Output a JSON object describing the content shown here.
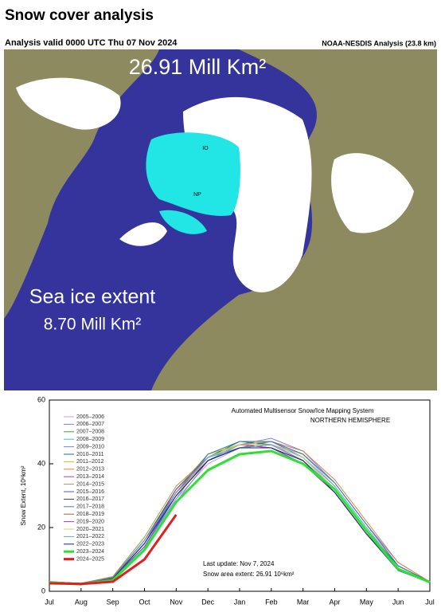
{
  "header": {
    "title": "Snow cover analysis",
    "valid": "Analysis valid 0000 UTC  Thu 07 Nov 2024",
    "source": "NOAA-NESDIS Analysis (23.8 km)"
  },
  "map": {
    "snow_area": "26.91 Mill Km²",
    "ice_label": "Sea ice extent",
    "ice_area": "8.70 Mill Km²",
    "marks": [
      "IO",
      "NP"
    ]
  },
  "chart_data": {
    "type": "line",
    "title": "Automated  Multisensor Snow/Ice Mapping System",
    "subtitle": "NORTHERN HEMISPHERE",
    "ylabel": "Snow Extent, 10⁶km²",
    "annotations": [
      "Last update: Nov  7, 2024",
      "Snow area extent: 26.91 10⁶km²"
    ],
    "categories": [
      "Jul",
      "Aug",
      "Sep",
      "Oct",
      "Nov",
      "Dec",
      "Jan",
      "Feb",
      "Mar",
      "Apr",
      "May",
      "Jun",
      "Jul"
    ],
    "ylim": [
      0,
      60
    ],
    "yticks": [
      0,
      20,
      40,
      60
    ],
    "series": [
      {
        "name": "2005–2006",
        "color": "#c8a0d8",
        "values": [
          3,
          2.5,
          4,
          14,
          29,
          40,
          45,
          46,
          43,
          33,
          20,
          8,
          3
        ]
      },
      {
        "name": "2006–2007",
        "color": "#7f7fd0",
        "values": [
          3,
          2.4,
          3.8,
          13,
          28,
          41,
          46,
          47,
          42,
          32,
          19,
          7,
          3
        ]
      },
      {
        "name": "2007–2008",
        "color": "#40a040",
        "values": [
          2.8,
          2.3,
          4.2,
          15,
          31,
          42,
          45,
          47,
          43,
          34,
          21,
          8,
          3
        ]
      },
      {
        "name": "2008–2009",
        "color": "#40c0c0",
        "values": [
          3,
          2.5,
          4.5,
          16,
          30,
          41,
          46,
          46,
          42,
          33,
          20,
          7,
          2.8
        ]
      },
      {
        "name": "2009–2010",
        "color": "#8080ff",
        "values": [
          3.1,
          2.4,
          4,
          14,
          29,
          43,
          46,
          48,
          44,
          34,
          21,
          9,
          3
        ]
      },
      {
        "name": "2010–2011",
        "color": "#008080",
        "values": [
          3,
          2.3,
          3.9,
          15,
          30,
          42,
          47,
          46,
          42,
          32,
          19,
          8,
          3
        ]
      },
      {
        "name": "2011–2012",
        "color": "#d0c020",
        "values": [
          2.9,
          2.5,
          4.3,
          16,
          32,
          43,
          46,
          45,
          41,
          31,
          18,
          7,
          2.9
        ]
      },
      {
        "name": "2012–2013",
        "color": "#e08040",
        "values": [
          2.7,
          2.2,
          4,
          14,
          30,
          42,
          46,
          47,
          44,
          35,
          22,
          9,
          3
        ]
      },
      {
        "name": "2013–2014",
        "color": "#c04080",
        "values": [
          3,
          2.4,
          4.1,
          15,
          31,
          41,
          45,
          46,
          41,
          32,
          19,
          7,
          2.8
        ]
      },
      {
        "name": "2014–2015",
        "color": "#a0a040",
        "values": [
          3,
          2.5,
          4.6,
          17,
          33,
          42,
          46,
          45,
          40,
          31,
          18,
          7,
          2.8
        ]
      },
      {
        "name": "2015–2016",
        "color": "#4060c0",
        "values": [
          2.9,
          2.4,
          4,
          14,
          30,
          41,
          45,
          45,
          40,
          31,
          18,
          6.5,
          2.7
        ]
      },
      {
        "name": "2016–2017",
        "color": "#404040",
        "values": [
          2.8,
          2.3,
          4.2,
          16,
          32,
          42,
          46,
          46,
          41,
          32,
          19,
          7,
          2.8
        ]
      },
      {
        "name": "2017–2018",
        "color": "#4080a0",
        "values": [
          2.9,
          2.4,
          4.1,
          15,
          31,
          43,
          47,
          47,
          43,
          34,
          21,
          8,
          3
        ]
      },
      {
        "name": "2018–2019",
        "color": "#a06040",
        "values": [
          3,
          2.5,
          4.4,
          16,
          31,
          41,
          45,
          46,
          41,
          32,
          19,
          7,
          2.9
        ]
      },
      {
        "name": "2019–2020",
        "color": "#a040c0",
        "values": [
          2.8,
          2.3,
          4,
          15,
          32,
          42,
          46,
          45,
          40,
          31,
          18,
          7,
          2.8
        ]
      },
      {
        "name": "2020–2021",
        "color": "#e0d060",
        "values": [
          2.7,
          2.2,
          3.9,
          15,
          30,
          42,
          46,
          46,
          42,
          32,
          19,
          7,
          2.8
        ]
      },
      {
        "name": "2021–2022",
        "color": "#60a0e0",
        "values": [
          2.8,
          2.4,
          4.2,
          16,
          31,
          42,
          45,
          46,
          41,
          32,
          19,
          7,
          2.7
        ]
      },
      {
        "name": "2022–2023",
        "color": "#202080",
        "values": [
          2.9,
          2.3,
          4,
          15,
          30,
          41,
          45,
          45,
          41,
          31,
          18,
          7,
          2.8
        ]
      },
      {
        "name": "2023–2024",
        "color": "#30e030",
        "width": 3,
        "values": [
          2.8,
          2.2,
          3.5,
          13,
          28,
          38,
          43,
          44,
          40,
          32,
          19,
          7,
          2.8
        ]
      },
      {
        "name": "2024–2025",
        "color": "#e02020",
        "width": 3,
        "values": [
          2.5,
          2.3,
          3,
          10,
          24,
          null,
          null,
          null,
          null,
          null,
          null,
          null,
          null
        ]
      }
    ]
  }
}
